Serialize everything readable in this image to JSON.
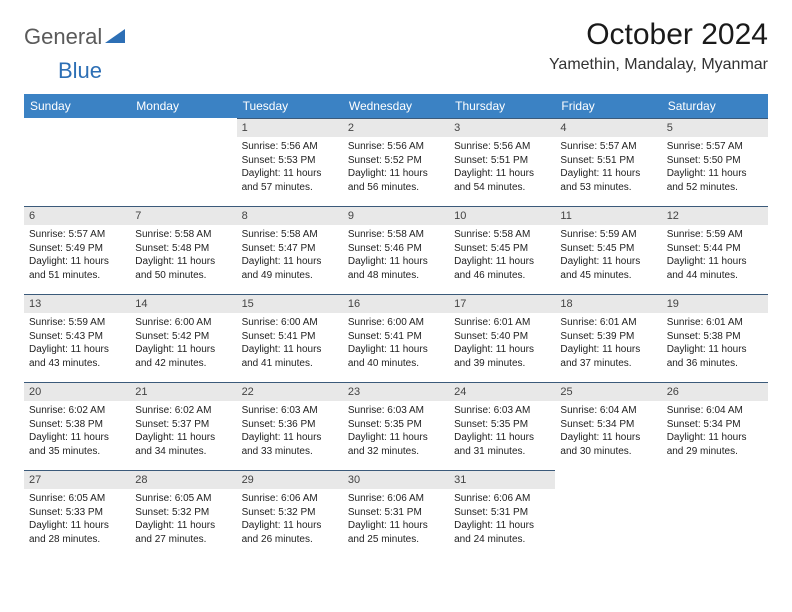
{
  "logo": {
    "gray": "General",
    "blue": "Blue"
  },
  "title": "October 2024",
  "location": "Yamethin, Mandalay, Myanmar",
  "colors": {
    "header_bg": "#3b82c4",
    "header_text": "#ffffff",
    "daynum_bg": "#e8e8e8",
    "daynum_border": "#3b5a7a",
    "logo_gray": "#5a5a5a",
    "logo_blue": "#2d6fb5"
  },
  "weekdays": [
    "Sunday",
    "Monday",
    "Tuesday",
    "Wednesday",
    "Thursday",
    "Friday",
    "Saturday"
  ],
  "weeks": [
    [
      null,
      null,
      {
        "n": "1",
        "sr": "Sunrise: 5:56 AM",
        "ss": "Sunset: 5:53 PM",
        "dl": "Daylight: 11 hours and 57 minutes."
      },
      {
        "n": "2",
        "sr": "Sunrise: 5:56 AM",
        "ss": "Sunset: 5:52 PM",
        "dl": "Daylight: 11 hours and 56 minutes."
      },
      {
        "n": "3",
        "sr": "Sunrise: 5:56 AM",
        "ss": "Sunset: 5:51 PM",
        "dl": "Daylight: 11 hours and 54 minutes."
      },
      {
        "n": "4",
        "sr": "Sunrise: 5:57 AM",
        "ss": "Sunset: 5:51 PM",
        "dl": "Daylight: 11 hours and 53 minutes."
      },
      {
        "n": "5",
        "sr": "Sunrise: 5:57 AM",
        "ss": "Sunset: 5:50 PM",
        "dl": "Daylight: 11 hours and 52 minutes."
      }
    ],
    [
      {
        "n": "6",
        "sr": "Sunrise: 5:57 AM",
        "ss": "Sunset: 5:49 PM",
        "dl": "Daylight: 11 hours and 51 minutes."
      },
      {
        "n": "7",
        "sr": "Sunrise: 5:58 AM",
        "ss": "Sunset: 5:48 PM",
        "dl": "Daylight: 11 hours and 50 minutes."
      },
      {
        "n": "8",
        "sr": "Sunrise: 5:58 AM",
        "ss": "Sunset: 5:47 PM",
        "dl": "Daylight: 11 hours and 49 minutes."
      },
      {
        "n": "9",
        "sr": "Sunrise: 5:58 AM",
        "ss": "Sunset: 5:46 PM",
        "dl": "Daylight: 11 hours and 48 minutes."
      },
      {
        "n": "10",
        "sr": "Sunrise: 5:58 AM",
        "ss": "Sunset: 5:45 PM",
        "dl": "Daylight: 11 hours and 46 minutes."
      },
      {
        "n": "11",
        "sr": "Sunrise: 5:59 AM",
        "ss": "Sunset: 5:45 PM",
        "dl": "Daylight: 11 hours and 45 minutes."
      },
      {
        "n": "12",
        "sr": "Sunrise: 5:59 AM",
        "ss": "Sunset: 5:44 PM",
        "dl": "Daylight: 11 hours and 44 minutes."
      }
    ],
    [
      {
        "n": "13",
        "sr": "Sunrise: 5:59 AM",
        "ss": "Sunset: 5:43 PM",
        "dl": "Daylight: 11 hours and 43 minutes."
      },
      {
        "n": "14",
        "sr": "Sunrise: 6:00 AM",
        "ss": "Sunset: 5:42 PM",
        "dl": "Daylight: 11 hours and 42 minutes."
      },
      {
        "n": "15",
        "sr": "Sunrise: 6:00 AM",
        "ss": "Sunset: 5:41 PM",
        "dl": "Daylight: 11 hours and 41 minutes."
      },
      {
        "n": "16",
        "sr": "Sunrise: 6:00 AM",
        "ss": "Sunset: 5:41 PM",
        "dl": "Daylight: 11 hours and 40 minutes."
      },
      {
        "n": "17",
        "sr": "Sunrise: 6:01 AM",
        "ss": "Sunset: 5:40 PM",
        "dl": "Daylight: 11 hours and 39 minutes."
      },
      {
        "n": "18",
        "sr": "Sunrise: 6:01 AM",
        "ss": "Sunset: 5:39 PM",
        "dl": "Daylight: 11 hours and 37 minutes."
      },
      {
        "n": "19",
        "sr": "Sunrise: 6:01 AM",
        "ss": "Sunset: 5:38 PM",
        "dl": "Daylight: 11 hours and 36 minutes."
      }
    ],
    [
      {
        "n": "20",
        "sr": "Sunrise: 6:02 AM",
        "ss": "Sunset: 5:38 PM",
        "dl": "Daylight: 11 hours and 35 minutes."
      },
      {
        "n": "21",
        "sr": "Sunrise: 6:02 AM",
        "ss": "Sunset: 5:37 PM",
        "dl": "Daylight: 11 hours and 34 minutes."
      },
      {
        "n": "22",
        "sr": "Sunrise: 6:03 AM",
        "ss": "Sunset: 5:36 PM",
        "dl": "Daylight: 11 hours and 33 minutes."
      },
      {
        "n": "23",
        "sr": "Sunrise: 6:03 AM",
        "ss": "Sunset: 5:35 PM",
        "dl": "Daylight: 11 hours and 32 minutes."
      },
      {
        "n": "24",
        "sr": "Sunrise: 6:03 AM",
        "ss": "Sunset: 5:35 PM",
        "dl": "Daylight: 11 hours and 31 minutes."
      },
      {
        "n": "25",
        "sr": "Sunrise: 6:04 AM",
        "ss": "Sunset: 5:34 PM",
        "dl": "Daylight: 11 hours and 30 minutes."
      },
      {
        "n": "26",
        "sr": "Sunrise: 6:04 AM",
        "ss": "Sunset: 5:34 PM",
        "dl": "Daylight: 11 hours and 29 minutes."
      }
    ],
    [
      {
        "n": "27",
        "sr": "Sunrise: 6:05 AM",
        "ss": "Sunset: 5:33 PM",
        "dl": "Daylight: 11 hours and 28 minutes."
      },
      {
        "n": "28",
        "sr": "Sunrise: 6:05 AM",
        "ss": "Sunset: 5:32 PM",
        "dl": "Daylight: 11 hours and 27 minutes."
      },
      {
        "n": "29",
        "sr": "Sunrise: 6:06 AM",
        "ss": "Sunset: 5:32 PM",
        "dl": "Daylight: 11 hours and 26 minutes."
      },
      {
        "n": "30",
        "sr": "Sunrise: 6:06 AM",
        "ss": "Sunset: 5:31 PM",
        "dl": "Daylight: 11 hours and 25 minutes."
      },
      {
        "n": "31",
        "sr": "Sunrise: 6:06 AM",
        "ss": "Sunset: 5:31 PM",
        "dl": "Daylight: 11 hours and 24 minutes."
      },
      null,
      null
    ]
  ]
}
